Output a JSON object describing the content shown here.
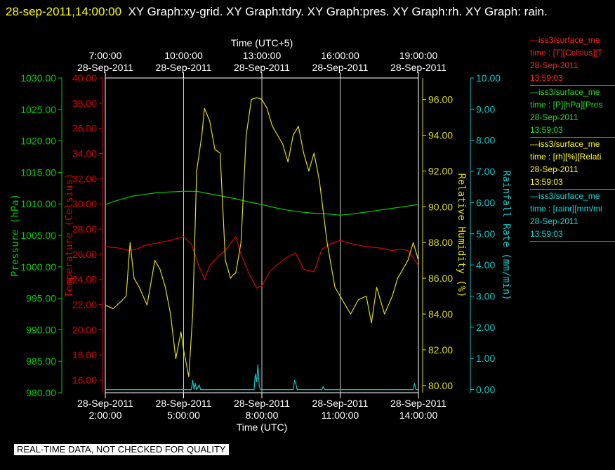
{
  "header": {
    "timestamp": "28-sep-2011,14:00:00",
    "graphs": "XY Graph:xy-grid.  XY Graph:tdry.  XY Graph:pres.  XY Graph:rh.  XY Graph: rain."
  },
  "chart_data": {
    "type": "line",
    "x_bottom": {
      "label": "Time (UTC)",
      "ticks": [
        {
          "x": 2,
          "date": "28-Sep-2011",
          "time": "2:00:00"
        },
        {
          "x": 5,
          "date": "28-Sep-2011",
          "time": "5:00:00"
        },
        {
          "x": 8,
          "date": "28-Sep-2011",
          "time": "8:00:00"
        },
        {
          "x": 11,
          "date": "28-Sep-2011",
          "time": "11:00:00"
        },
        {
          "x": 14,
          "date": "28-Sep-2011",
          "time": "14:00:00"
        }
      ],
      "range": [
        2,
        14
      ]
    },
    "x_top": {
      "label": "Time (UTC+5)",
      "ticks": [
        {
          "x": 2,
          "time": "7:00:00",
          "date": "28-Sep-2011"
        },
        {
          "x": 5,
          "time": "10:00:00",
          "date": "28-Sep-2011"
        },
        {
          "x": 8,
          "time": "13:00:00",
          "date": "28-Sep-2011"
        },
        {
          "x": 11,
          "time": "16:00:00",
          "date": "28-Sep-2011"
        },
        {
          "x": 14,
          "time": "19:00:00",
          "date": "28-Sep-2011"
        }
      ]
    },
    "axes": [
      {
        "id": "pres",
        "label": "Pressure (hPa)",
        "color": "#00cc00",
        "range": [
          980,
          1030
        ],
        "ticks": [
          "980.00",
          "985.00",
          "990.00",
          "995.00",
          "1000.00",
          "1005.00",
          "1010.00",
          "1015.00",
          "1020.00",
          "1025.00",
          "1030.00"
        ]
      },
      {
        "id": "tdry",
        "label": "Temperature (Celsius)",
        "color": "#dd0000",
        "range": [
          15,
          40
        ],
        "ticks": [
          "16.00",
          "18.00",
          "20.00",
          "22.00",
          "24.00",
          "26.00",
          "28.00",
          "30.00",
          "32.00",
          "34.00",
          "36.00",
          "38.00",
          "40.00"
        ]
      },
      {
        "id": "rh",
        "label": "Relative Humidity (%)",
        "color": "#dddd00",
        "range": [
          79.6,
          97.2
        ],
        "ticks": [
          "80.00",
          "82.00",
          "84.00",
          "86.00",
          "88.00",
          "90.00",
          "92.00",
          "94.00",
          "96.00"
        ]
      },
      {
        "id": "rain",
        "label": "Rainfall Rate (mm/min)",
        "color": "#00cccc",
        "range": [
          -0.1,
          10
        ],
        "ticks": [
          "0.00",
          "1.00",
          "2.00",
          "3.00",
          "4.00",
          "5.00",
          "6.00",
          "7.00",
          "8.00",
          "9.00",
          "10.00"
        ]
      }
    ],
    "series": [
      {
        "name": "pres",
        "axis": "pres",
        "color": "#00cc00",
        "x": [
          2.0,
          2.5,
          3.0,
          3.5,
          4.0,
          4.5,
          5.0,
          5.5,
          6.0,
          6.5,
          7.0,
          7.5,
          8.0,
          8.5,
          9.0,
          9.5,
          10.0,
          10.5,
          11.0,
          11.5,
          12.0,
          12.5,
          13.0,
          13.5,
          14.0
        ],
        "y": [
          1009.9,
          1010.6,
          1011.2,
          1011.5,
          1011.8,
          1011.9,
          1012.0,
          1012.0,
          1011.6,
          1011.2,
          1010.8,
          1010.3,
          1009.9,
          1009.4,
          1009.0,
          1008.7,
          1008.5,
          1008.4,
          1008.2,
          1008.4,
          1008.7,
          1009.0,
          1009.3,
          1009.6,
          1009.9
        ]
      },
      {
        "name": "tdry",
        "axis": "tdry",
        "color": "#dd0000",
        "x": [
          2.0,
          2.5,
          2.9,
          3.2,
          3.5,
          4.0,
          4.5,
          5.0,
          5.3,
          5.6,
          5.8,
          6.0,
          6.3,
          6.6,
          7.0,
          7.2,
          7.5,
          7.8,
          8.0,
          8.3,
          8.6,
          9.0,
          9.3,
          9.6,
          10.0,
          10.3,
          10.6,
          11.0,
          11.5,
          12.0,
          12.5,
          13.0,
          13.3,
          13.6,
          14.0
        ],
        "y": [
          26.6,
          26.5,
          26.3,
          26.4,
          26.7,
          26.9,
          27.1,
          27.4,
          26.8,
          25.0,
          24.0,
          25.1,
          25.8,
          26.3,
          27.4,
          26.0,
          24.5,
          23.3,
          23.5,
          24.6,
          25.2,
          25.8,
          26.1,
          24.8,
          24.6,
          26.4,
          26.8,
          27.1,
          26.8,
          26.6,
          26.5,
          26.3,
          26.4,
          26.3,
          25.1
        ]
      },
      {
        "name": "rh",
        "axis": "rh",
        "color": "#dddd00",
        "x": [
          2.0,
          2.3,
          2.6,
          2.8,
          2.95,
          3.1,
          3.3,
          3.6,
          3.9,
          4.1,
          4.3,
          4.5,
          4.7,
          4.9,
          5.0,
          5.2,
          5.35,
          5.5,
          5.7,
          5.8,
          6.0,
          6.2,
          6.4,
          6.5,
          6.6,
          6.8,
          6.9,
          7.0,
          7.2,
          7.4,
          7.6,
          7.8,
          8.0,
          8.2,
          8.4,
          8.6,
          8.8,
          9.0,
          9.2,
          9.4,
          9.6,
          9.8,
          10.0,
          10.2,
          10.5,
          10.8,
          11.0,
          11.2,
          11.4,
          11.7,
          12.0,
          12.2,
          12.4,
          12.7,
          13.0,
          13.2,
          13.4,
          13.6,
          13.8,
          14.0
        ],
        "y": [
          84.5,
          84.3,
          84.7,
          85.0,
          88.0,
          86.0,
          85.5,
          84.5,
          87.0,
          86.5,
          85.5,
          84.0,
          81.5,
          83.0,
          82.0,
          80.5,
          84.0,
          92.0,
          94.0,
          95.5,
          94.8,
          93.2,
          93.0,
          90.0,
          87.0,
          86.0,
          86.2,
          86.3,
          88.0,
          94.0,
          96.0,
          96.1,
          96.0,
          95.5,
          94.5,
          94.0,
          93.5,
          92.5,
          94.0,
          94.5,
          93.0,
          92.0,
          93.0,
          91.5,
          88.0,
          85.5,
          85.0,
          84.5,
          84.0,
          84.8,
          85.0,
          83.5,
          85.5,
          84.0,
          85.0,
          86.0,
          86.5,
          87.0,
          88.0,
          87.0
        ]
      },
      {
        "name": "rain",
        "axis": "rain",
        "color": "#00cccc",
        "x": [
          2.0,
          5.3,
          5.35,
          5.4,
          5.45,
          5.5,
          5.6,
          5.65,
          5.7,
          7.7,
          7.75,
          7.8,
          7.85,
          7.9,
          7.95,
          8.0,
          9.2,
          9.25,
          9.3,
          9.35,
          9.4,
          10.3,
          10.35,
          10.4,
          13.8,
          13.85,
          13.9,
          14.0
        ],
        "y": [
          0.0,
          0.0,
          0.3,
          0.0,
          0.2,
          0.0,
          0.15,
          0.0,
          0.0,
          0.0,
          0.5,
          0.25,
          0.8,
          0.1,
          0.0,
          0.0,
          0.0,
          0.3,
          0.2,
          0.0,
          0.0,
          0.0,
          0.1,
          0.0,
          0.0,
          0.2,
          0.0,
          0.0
        ]
      }
    ],
    "grid": true
  },
  "legend": [
    {
      "line1": "—iss3/surface_me",
      "line2": "time : [T][Celsius][T",
      "date": "28-Sep-2011",
      "time": "13:59:03",
      "color": "#ff2020"
    },
    {
      "line1": "—iss3/surface_me",
      "line2": "time : [P][hPa][Pres",
      "date": "28-Sep-2011",
      "time": "13:59:03",
      "color": "#20dd20"
    },
    {
      "line1": "—iss3/surface_me",
      "line2": "time : [rh][%][Relati",
      "date": "28-Sep-2011",
      "time": "13:59:03",
      "color": "#ffff00"
    },
    {
      "line1": "—iss3/surface_me",
      "line2": "time : [rainr][mm/mi",
      "date": "28-Sep-2011",
      "time": "13:59:03",
      "color": "#00dddd"
    }
  ],
  "footer": "REAL-TIME DATA, NOT CHECKED FOR QUALITY"
}
